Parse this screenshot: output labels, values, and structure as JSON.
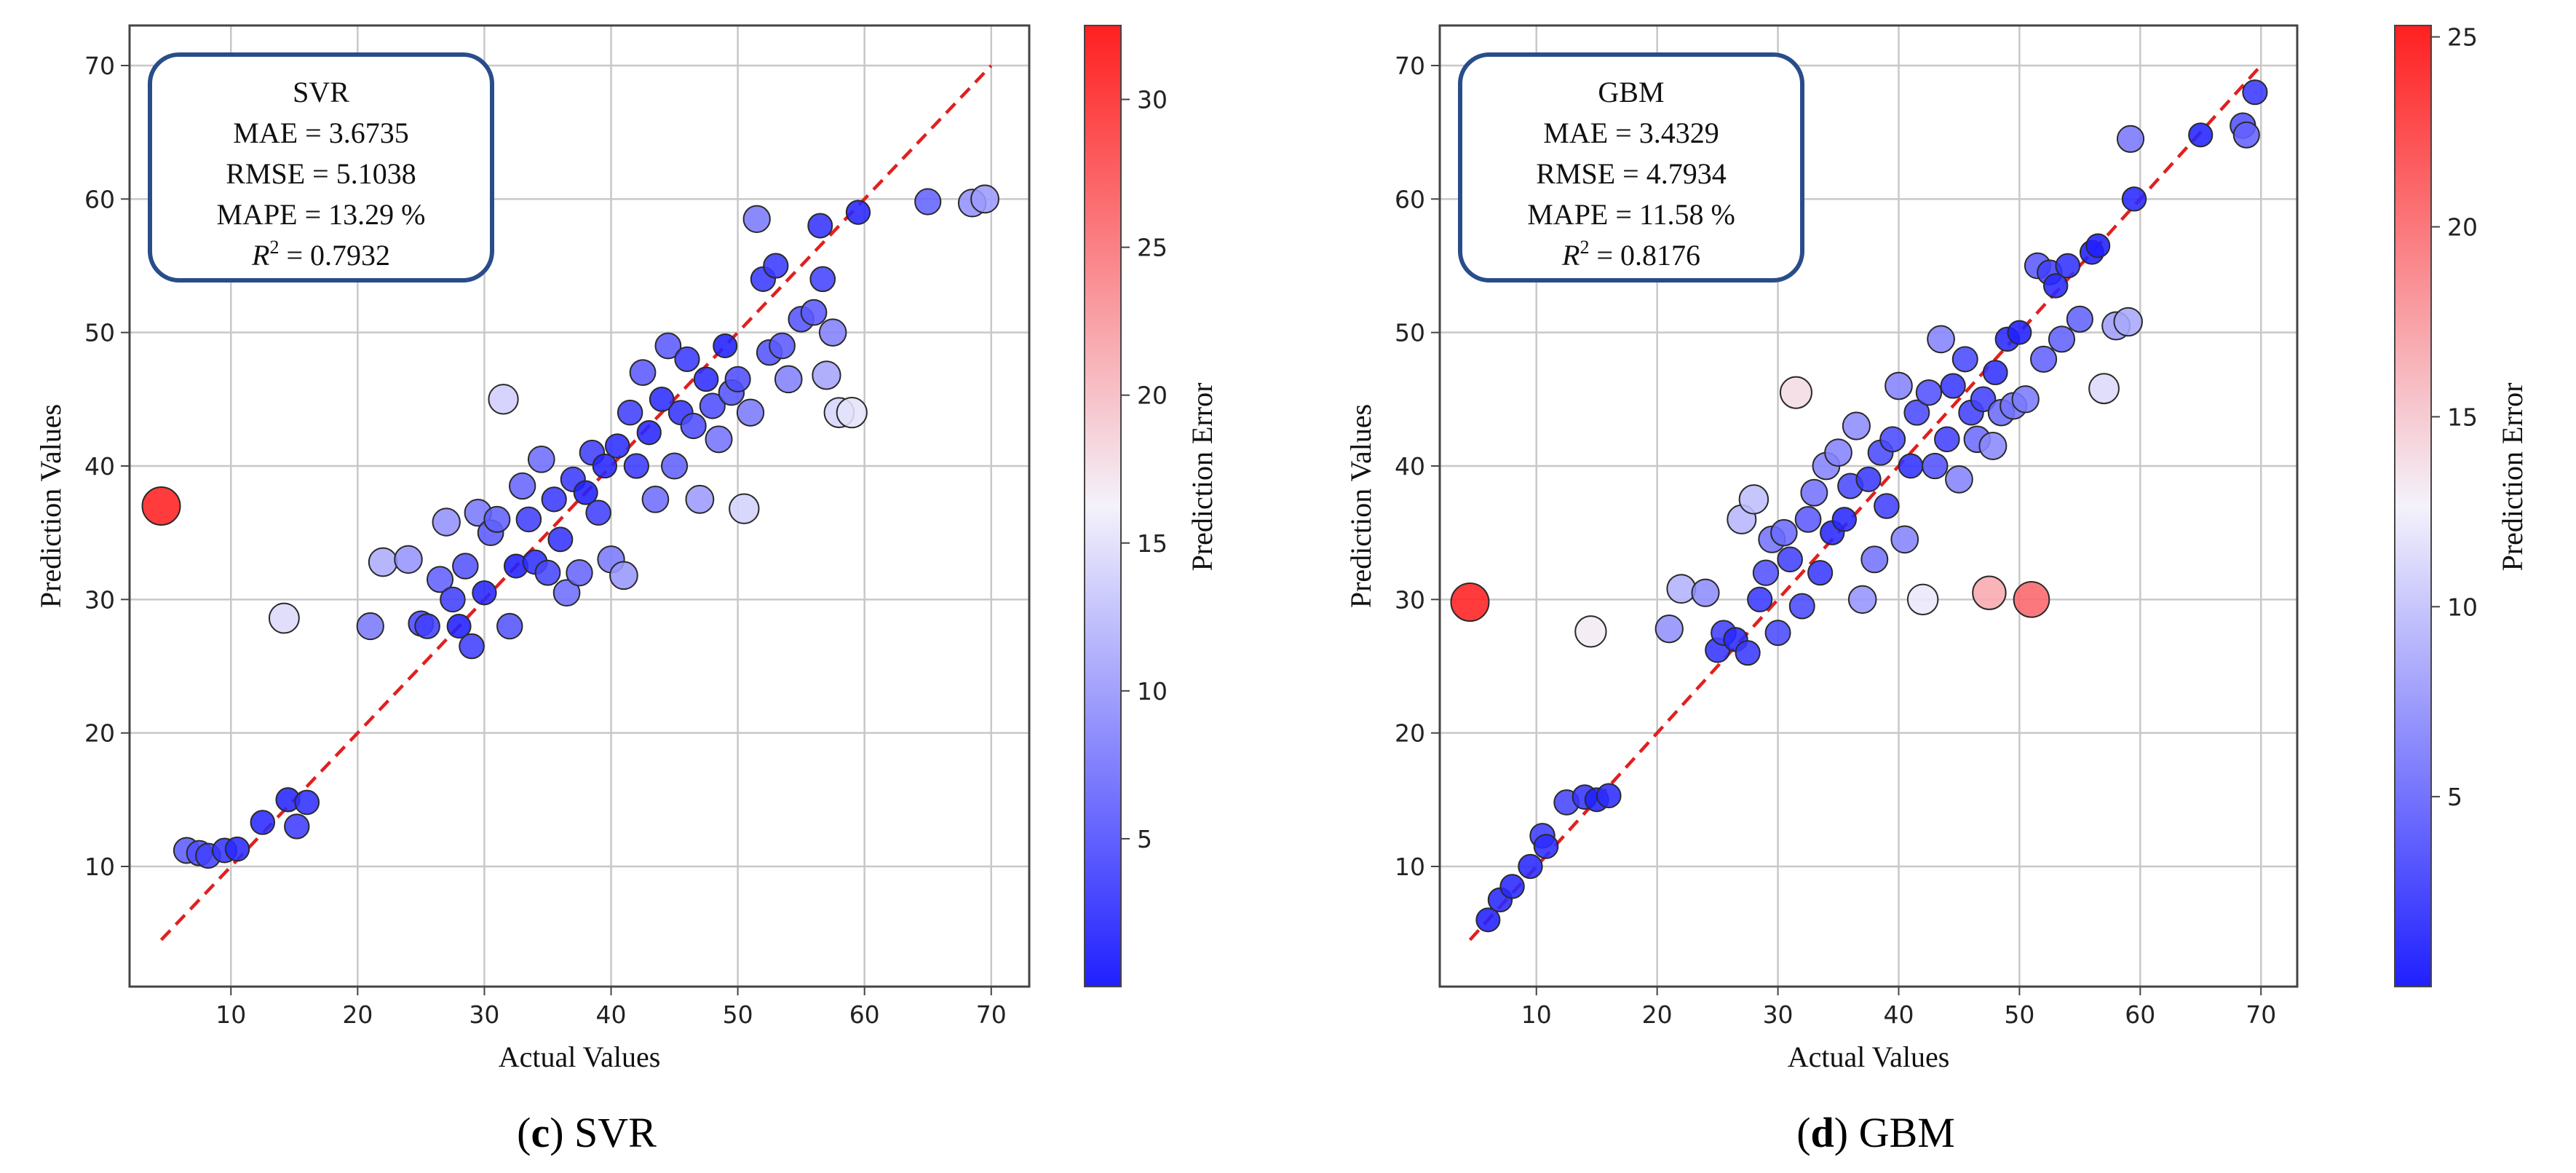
{
  "chart_data": [
    {
      "type": "scatter",
      "model": "SVR",
      "caption_letter": "c",
      "caption_text": " SVR",
      "stats": {
        "title": "SVR",
        "mae": "MAE = 3.6735",
        "rmse": "RMSE = 5.1038",
        "mape": "MAPE = 13.29 %",
        "r2_value": " = 0.7932"
      },
      "xlabel": "Actual Values",
      "ylabel": "Prediction Values",
      "colorbar_label": "Prediction Error",
      "xlim": [
        2,
        73
      ],
      "ylim": [
        1,
        73
      ],
      "xticks": [
        10,
        20,
        30,
        40,
        50,
        60,
        70
      ],
      "yticks": [
        10,
        20,
        30,
        40,
        50,
        60,
        70
      ],
      "colorbar_range": [
        0,
        32.5
      ],
      "colorbar_ticks": [
        5,
        10,
        15,
        20,
        25,
        30
      ],
      "grid": true,
      "reference_line": [
        [
          4.5,
          4.5
        ],
        [
          70,
          70
        ]
      ],
      "points": [
        [
          4.5,
          37,
          32.5
        ],
        [
          6.5,
          11.2,
          4.7
        ],
        [
          7.5,
          11,
          3.5
        ],
        [
          8.2,
          10.8,
          2.6
        ],
        [
          9.5,
          11.2,
          1.7
        ],
        [
          10.5,
          11.3,
          0.8
        ],
        [
          12.5,
          13.3,
          0.8
        ],
        [
          14.2,
          28.6,
          14.4
        ],
        [
          14.5,
          15,
          0.5
        ],
        [
          15.2,
          13,
          2.2
        ],
        [
          16,
          14.8,
          1.2
        ],
        [
          21,
          28,
          7
        ],
        [
          22,
          32.8,
          10.8
        ],
        [
          24,
          33,
          9
        ],
        [
          25,
          28.2,
          3.2
        ],
        [
          25.5,
          28,
          2.5
        ],
        [
          26.5,
          31.5,
          5
        ],
        [
          27,
          35.8,
          8.8
        ],
        [
          27.5,
          30,
          2.5
        ],
        [
          28,
          28,
          0
        ],
        [
          28.5,
          32.5,
          4
        ],
        [
          29,
          26.5,
          2.5
        ],
        [
          29.5,
          36.5,
          7
        ],
        [
          30,
          30.5,
          0.5
        ],
        [
          30.5,
          35,
          4.5
        ],
        [
          31,
          36,
          5
        ],
        [
          31.5,
          45,
          13.5
        ],
        [
          32,
          28,
          4
        ],
        [
          32.5,
          32.5,
          0
        ],
        [
          33,
          38.5,
          5.5
        ],
        [
          33.5,
          36,
          2.5
        ],
        [
          34,
          32.8,
          1.2
        ],
        [
          34.5,
          40.5,
          6
        ],
        [
          35,
          32,
          3
        ],
        [
          35.5,
          37.5,
          2
        ],
        [
          36,
          34.5,
          1.5
        ],
        [
          36.5,
          30.5,
          6
        ],
        [
          37,
          39,
          2
        ],
        [
          37.5,
          32,
          5.5
        ],
        [
          38,
          38,
          0
        ],
        [
          38.5,
          41,
          2.5
        ],
        [
          39,
          36.5,
          2.5
        ],
        [
          39.5,
          40,
          0.5
        ],
        [
          40,
          33,
          7
        ],
        [
          40.5,
          41.5,
          1
        ],
        [
          41,
          31.8,
          9.2
        ],
        [
          41.5,
          44,
          2.5
        ],
        [
          42,
          40,
          2
        ],
        [
          42.5,
          47,
          4.5
        ],
        [
          43,
          42.5,
          0.5
        ],
        [
          43.5,
          37.5,
          6
        ],
        [
          44,
          45,
          1
        ],
        [
          44.5,
          49,
          4.5
        ],
        [
          45,
          40,
          5
        ],
        [
          45.5,
          44,
          1.5
        ],
        [
          46,
          48,
          2
        ],
        [
          46.5,
          43,
          3.5
        ],
        [
          47,
          37.5,
          9.5
        ],
        [
          47.5,
          46.5,
          1
        ],
        [
          48,
          44.5,
          3.5
        ],
        [
          48.5,
          42,
          6.5
        ],
        [
          49,
          49,
          0
        ],
        [
          49.5,
          45.5,
          4
        ],
        [
          50,
          46.5,
          3.5
        ],
        [
          50.5,
          36.8,
          13.7
        ],
        [
          51,
          44,
          7
        ],
        [
          51.5,
          58.5,
          7
        ],
        [
          52,
          54,
          2
        ],
        [
          52.5,
          48.5,
          4
        ],
        [
          53,
          55,
          2
        ],
        [
          53.5,
          49,
          4.5
        ],
        [
          54,
          46.5,
          7.5
        ],
        [
          55,
          51,
          4
        ],
        [
          56,
          51.5,
          4.5
        ],
        [
          56.5,
          58,
          1.5
        ],
        [
          56.7,
          54,
          2.7
        ],
        [
          57,
          46.8,
          10.2
        ],
        [
          57.5,
          50,
          7.5
        ],
        [
          58,
          44,
          14
        ],
        [
          59,
          44,
          15
        ],
        [
          59.5,
          59,
          0.5
        ],
        [
          65,
          59.8,
          5.2
        ],
        [
          68.5,
          59.7,
          8.8
        ],
        [
          69.5,
          60,
          9.5
        ]
      ]
    },
    {
      "type": "scatter",
      "model": "GBM",
      "caption_letter": "d",
      "caption_text": " GBM",
      "stats": {
        "title": "GBM",
        "mae": "MAE = 3.4329",
        "rmse": "RMSE = 4.7934",
        "mape": "MAPE = 11.58 %",
        "r2_value": " = 0.8176"
      },
      "xlabel": "Actual Values",
      "ylabel": "Prediction Values",
      "colorbar_label": "Prediction Error",
      "xlim": [
        2,
        73
      ],
      "ylim": [
        1,
        73
      ],
      "xticks": [
        10,
        20,
        30,
        40,
        50,
        60,
        70
      ],
      "yticks": [
        10,
        20,
        30,
        40,
        50,
        60,
        70
      ],
      "colorbar_range": [
        0,
        25.3
      ],
      "colorbar_ticks": [
        5,
        10,
        15,
        20,
        25
      ],
      "grid": true,
      "reference_line": [
        [
          4.5,
          4.5
        ],
        [
          70,
          70
        ]
      ],
      "points": [
        [
          4.5,
          29.8,
          25.3
        ],
        [
          6,
          6,
          0
        ],
        [
          7,
          7.5,
          0.5
        ],
        [
          8,
          8.5,
          0.5
        ],
        [
          9.5,
          10,
          0.5
        ],
        [
          10.5,
          12.3,
          1.8
        ],
        [
          10.8,
          11.5,
          0.7
        ],
        [
          12.5,
          14.8,
          2.3
        ],
        [
          14,
          15.2,
          1.2
        ],
        [
          15,
          15,
          0
        ],
        [
          16,
          15.3,
          0.7
        ],
        [
          14.5,
          27.6,
          13.1
        ],
        [
          21,
          27.8,
          6.8
        ],
        [
          22,
          30.8,
          8.8
        ],
        [
          24,
          30.5,
          6.5
        ],
        [
          25,
          26.2,
          1.2
        ],
        [
          25.5,
          27.5,
          2
        ],
        [
          26.5,
          27,
          0.5
        ],
        [
          27,
          36,
          9
        ],
        [
          27.5,
          26,
          1.5
        ],
        [
          28,
          37.5,
          9.5
        ],
        [
          28.5,
          30,
          1.5
        ],
        [
          29,
          32,
          3
        ],
        [
          29.5,
          34.5,
          5
        ],
        [
          30,
          27.5,
          2.5
        ],
        [
          30.5,
          35,
          4.5
        ],
        [
          31,
          33,
          2
        ],
        [
          31.5,
          45.5,
          14
        ],
        [
          32,
          29.5,
          2.5
        ],
        [
          32.5,
          36,
          3.5
        ],
        [
          33,
          38,
          5
        ],
        [
          33.5,
          32,
          1.5
        ],
        [
          34,
          40,
          6
        ],
        [
          34.5,
          35,
          0.5
        ],
        [
          35,
          41,
          6
        ],
        [
          35.5,
          36,
          0.5
        ],
        [
          36,
          38.5,
          2.5
        ],
        [
          36.5,
          43,
          6.5
        ],
        [
          37,
          30,
          7
        ],
        [
          37.5,
          39,
          1.5
        ],
        [
          38,
          33,
          5
        ],
        [
          38.5,
          41,
          2.5
        ],
        [
          39,
          37,
          2
        ],
        [
          39.5,
          42,
          2.5
        ],
        [
          40,
          46,
          6
        ],
        [
          40.5,
          34.5,
          6
        ],
        [
          41,
          40,
          1
        ],
        [
          41.5,
          44,
          2.5
        ],
        [
          42,
          30,
          12
        ],
        [
          42.5,
          45.5,
          3
        ],
        [
          43,
          40,
          3
        ],
        [
          43.5,
          49.5,
          6
        ],
        [
          44,
          42,
          2
        ],
        [
          44.5,
          46,
          1.5
        ],
        [
          45,
          39,
          6
        ],
        [
          45.5,
          48,
          2.5
        ],
        [
          46,
          44,
          2
        ],
        [
          46.5,
          42,
          4.5
        ],
        [
          47,
          45,
          2
        ],
        [
          47.5,
          30.5,
          17
        ],
        [
          47.8,
          41.5,
          6.3
        ],
        [
          48,
          47,
          1
        ],
        [
          48.5,
          44,
          4.5
        ],
        [
          49,
          49.5,
          0.5
        ],
        [
          49.5,
          44.5,
          5
        ],
        [
          50,
          50,
          0
        ],
        [
          50.5,
          45,
          5.5
        ],
        [
          51,
          30,
          21
        ],
        [
          51.5,
          55,
          3.5
        ],
        [
          52,
          48,
          4
        ],
        [
          52.5,
          54.5,
          2
        ],
        [
          53,
          53.5,
          0.5
        ],
        [
          53.5,
          49.5,
          4
        ],
        [
          54,
          55,
          1
        ],
        [
          55,
          51,
          4
        ],
        [
          56,
          56,
          0
        ],
        [
          56.5,
          56.5,
          0
        ],
        [
          57,
          45.8,
          11.2
        ],
        [
          58,
          50.5,
          7.5
        ],
        [
          59,
          50.8,
          8.2
        ],
        [
          59.2,
          64.5,
          5.3
        ],
        [
          59.5,
          60,
          0.5
        ],
        [
          65,
          64.8,
          0.2
        ],
        [
          68.5,
          65.5,
          3
        ],
        [
          68.8,
          64.8,
          4
        ],
        [
          69.5,
          68,
          1.5
        ]
      ]
    }
  ]
}
